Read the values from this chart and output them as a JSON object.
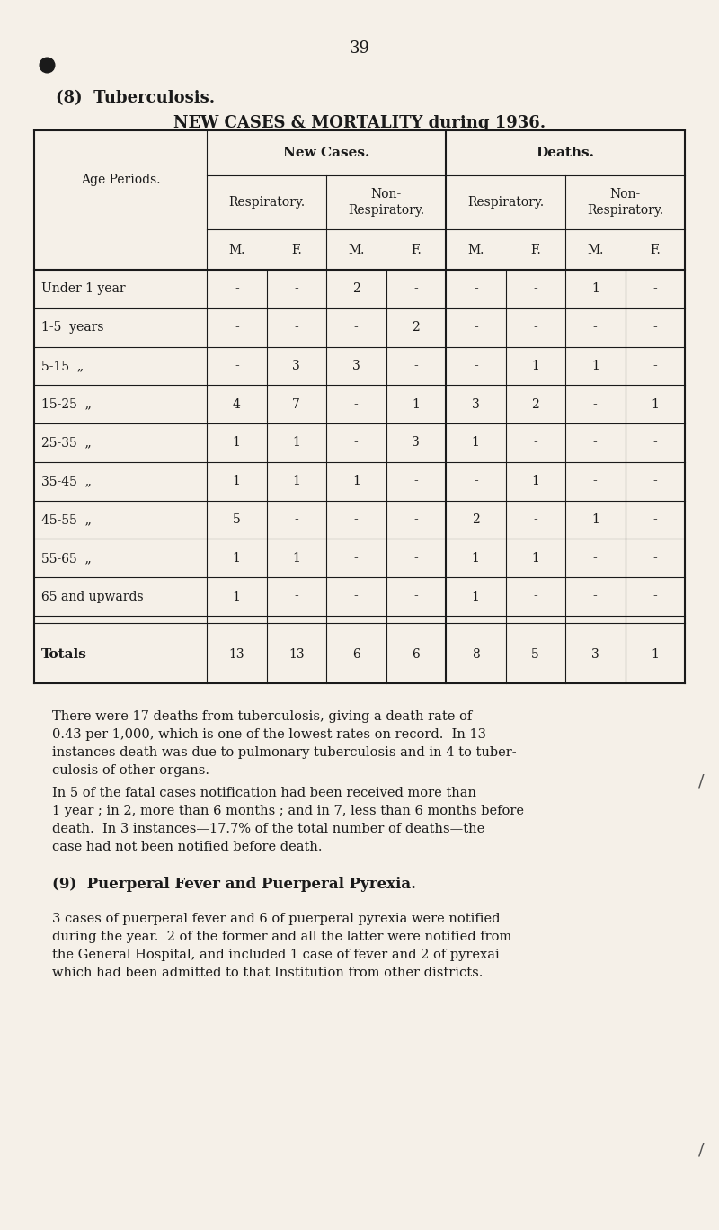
{
  "page_number": "39",
  "background_color": "#f5f0e8",
  "section_title": "(8)  Tuberculosis.",
  "table_title": "NEW CASES & MORTALITY during 1936.",
  "col_headers_level1": [
    "",
    "New Cases.",
    "Deaths."
  ],
  "col_headers_level2": [
    "Age Periods.",
    "Respiratory.",
    "Non-\nRespiratory.",
    "Respiratory.",
    "Non-\nRespiratory."
  ],
  "col_headers_level3": [
    "",
    "M.",
    "F.",
    "M.",
    "F.",
    "M.",
    "F.",
    "M.",
    "F."
  ],
  "age_periods": [
    "Under 1 year",
    "1-5  years",
    "5-15  „",
    "15-25  „",
    "25-35  „",
    "35-45  „",
    "45-55  „",
    "55-65  „",
    "65 and upwards"
  ],
  "data": [
    [
      "-",
      "-",
      "2",
      "-",
      "-",
      "-",
      "1",
      "-"
    ],
    [
      "-",
      "-",
      "-",
      "2",
      "-",
      "-",
      "-",
      "-"
    ],
    [
      "-",
      "3",
      "3",
      "-",
      "-",
      "1",
      "1",
      "-"
    ],
    [
      "4",
      "7",
      "-",
      "1",
      "3",
      "2",
      "-",
      "1"
    ],
    [
      "1",
      "1",
      "-",
      "3",
      "1",
      "-",
      "-",
      "-"
    ],
    [
      "1",
      "1",
      "1",
      "-",
      "-",
      "1",
      "-",
      "-"
    ],
    [
      "5",
      "-",
      "-",
      "-",
      "2",
      "-",
      "1",
      "-"
    ],
    [
      "1",
      "1",
      "-",
      "-",
      "1",
      "1",
      "-",
      "-"
    ],
    [
      "1",
      "-",
      "-",
      "-",
      "1",
      "-",
      "-",
      "-"
    ]
  ],
  "totals_label": "Totals",
  "totals": [
    "13",
    "13",
    "6",
    "6",
    "8",
    "5",
    "3",
    "1"
  ],
  "paragraph1": "There were 17 deaths from tuberculosis, giving a death rate of\n0.43 per 1,000, which is one of the lowest rates on record.  In 13\ninstances death was due to pulmonary tuberculosis and in 4 to tuber-\nculosis of other organs.",
  "paragraph2": "In 5 of the fatal cases notification had been received more than\n1 year ; in 2, more than 6 months ; and in 7, less than 6 months before\ndeath.  In 3 instances—17.7% of the total number of deaths—the\ncase had not been notified before death.",
  "section9_title": "(9)  Puerperal Fever and Puerperal Pyrexia.",
  "paragraph3": "3 cases of puerperal fever and 6 of puerperal pyrexia were notified\nduring the year.  2 of the former and all the latter were notified from\nthe General Hospital, and included 1 case of fever and 2 of pyrexai\nwhich had been admitted to that Institution from other districts."
}
